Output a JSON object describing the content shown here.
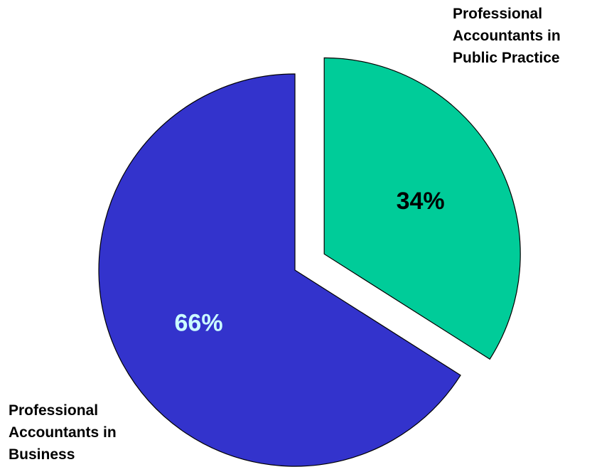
{
  "chart_data": {
    "type": "pie",
    "categories": [
      "Professional Accountants in Public Practice",
      "Professional Accountants in Business"
    ],
    "values": [
      34,
      66
    ],
    "unit": "%",
    "slices": [
      {
        "label_lines": [
          "Professional",
          "Accountants in",
          "Public Practice"
        ],
        "value": 34,
        "value_label": "34%",
        "color": "#00cc99",
        "value_label_color": "#000000",
        "exploded": true
      },
      {
        "label_lines": [
          "Professional",
          "Accountants in",
          "Business"
        ],
        "value": 66,
        "value_label": "66%",
        "color": "#3333cc",
        "value_label_color": "#ccffff",
        "exploded": false
      }
    ],
    "start_angle_deg": 0,
    "direction": "clockwise",
    "legend": "none"
  }
}
